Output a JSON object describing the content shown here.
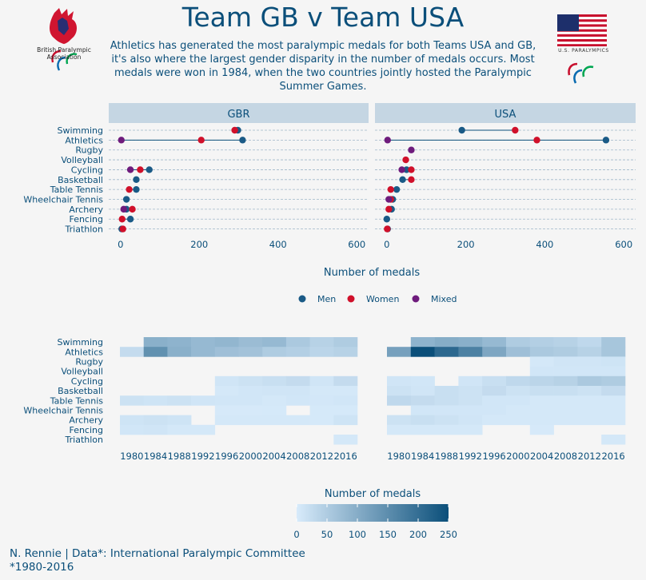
{
  "title": "Team GB v Team USA",
  "subtitle": "Athletics has generated the most paralympic medals for both Teams USA and GB, it's also where the largest gender disparity in the number of medals occurs. Most medals were won in 1984, when the two countries jointly hosted the Paralympic Summer Games.",
  "logos": {
    "left_text": "British Paralympic Association",
    "right_text": "U.S. PARALYMPICS"
  },
  "credit": {
    "line1": "N. Rennie | Data*: International Paralympic Committee",
    "line2": "*1980-2016"
  },
  "colors": {
    "Men": "#1a5a86",
    "Women": "#d0102a",
    "Mixed": "#6e1b7c",
    "panel_strip": "#c5d6e3",
    "heat_low": "#d8ebfb",
    "heat_high": "#0b4f7a"
  },
  "chart_data": [
    {
      "type": "scatter",
      "subtype": "dumbbell",
      "facets": [
        "GBR",
        "USA"
      ],
      "categories": [
        "Swimming",
        "Athletics",
        "Rugby",
        "Volleyball",
        "Cycling",
        "Basketball",
        "Table Tennis",
        "Wheelchair Tennis",
        "Archery",
        "Fencing",
        "Triathlon"
      ],
      "xlabel": "Number of medals",
      "xlim": [
        -30,
        630
      ],
      "xticks": [
        0,
        200,
        400,
        600
      ],
      "legend_position": "bottom",
      "series": [
        {
          "name": "Men",
          "facet": "GBR",
          "values": [
            298,
            310,
            null,
            null,
            73,
            40,
            40,
            15,
            15,
            25,
            3
          ]
        },
        {
          "name": "Women",
          "facet": "GBR",
          "values": [
            290,
            205,
            null,
            null,
            50,
            null,
            22,
            null,
            30,
            4,
            6
          ]
        },
        {
          "name": "Mixed",
          "facet": "GBR",
          "values": [
            null,
            2,
            null,
            null,
            25,
            null,
            null,
            null,
            8,
            null,
            null
          ]
        },
        {
          "name": "Men",
          "facet": "USA",
          "values": [
            190,
            555,
            null,
            null,
            50,
            40,
            25,
            15,
            12,
            0,
            2
          ]
        },
        {
          "name": "Women",
          "facet": "USA",
          "values": [
            325,
            380,
            null,
            48,
            62,
            62,
            10,
            10,
            5,
            null,
            1
          ]
        },
        {
          "name": "Mixed",
          "facet": "USA",
          "values": [
            null,
            2,
            62,
            null,
            38,
            null,
            null,
            5,
            null,
            null,
            null
          ]
        }
      ]
    },
    {
      "type": "heatmap",
      "facets": [
        "GBR",
        "USA"
      ],
      "rows": [
        "Swimming",
        "Athletics",
        "Rugby",
        "Volleyball",
        "Cycling",
        "Basketball",
        "Table Tennis",
        "Wheelchair Tennis",
        "Archery",
        "Fencing",
        "Triathlon"
      ],
      "years": [
        1980,
        1984,
        1988,
        1992,
        1996,
        2000,
        2004,
        2008,
        2012,
        2016
      ],
      "xticks": [
        1980,
        1984,
        1988,
        1992,
        1996,
        2000,
        2004,
        2008,
        2012,
        2016
      ],
      "legend_title": "Number of medals",
      "legend_ticks": [
        0,
        50,
        100,
        150,
        200,
        250
      ],
      "range": [
        0,
        250
      ],
      "values": {
        "GBR": [
          [
            null,
            95,
            90,
            80,
            85,
            75,
            80,
            55,
            40,
            50
          ],
          [
            25,
            145,
            95,
            80,
            70,
            65,
            50,
            45,
            35,
            40
          ],
          [
            null,
            null,
            null,
            null,
            null,
            null,
            null,
            null,
            null,
            null
          ],
          [
            null,
            null,
            null,
            null,
            null,
            null,
            null,
            null,
            null,
            null
          ],
          [
            null,
            null,
            null,
            null,
            10,
            15,
            20,
            25,
            10,
            25
          ],
          [
            null,
            null,
            null,
            null,
            5,
            8,
            10,
            10,
            5,
            5
          ],
          [
            15,
            12,
            15,
            10,
            8,
            8,
            5,
            8,
            6,
            8
          ],
          [
            null,
            null,
            null,
            null,
            3,
            3,
            4,
            null,
            4,
            4
          ],
          [
            12,
            15,
            12,
            null,
            5,
            5,
            5,
            5,
            4,
            12
          ],
          [
            8,
            10,
            5,
            5,
            null,
            null,
            null,
            null,
            null,
            null
          ],
          [
            null,
            null,
            null,
            null,
            null,
            null,
            null,
            null,
            null,
            5
          ]
        ],
        "USA": [
          [
            null,
            90,
            100,
            95,
            80,
            50,
            45,
            40,
            30,
            60
          ],
          [
            120,
            250,
            210,
            170,
            110,
            70,
            55,
            50,
            40,
            60
          ],
          [
            null,
            null,
            null,
            null,
            null,
            null,
            5,
            10,
            10,
            12
          ],
          [
            null,
            null,
            null,
            null,
            null,
            null,
            8,
            8,
            8,
            8
          ],
          [
            10,
            8,
            null,
            10,
            20,
            30,
            35,
            40,
            55,
            50
          ],
          [
            15,
            10,
            20,
            15,
            25,
            15,
            20,
            20,
            15,
            25
          ],
          [
            30,
            25,
            20,
            15,
            8,
            8,
            5,
            5,
            5,
            5
          ],
          [
            null,
            8,
            8,
            8,
            8,
            5,
            5,
            5,
            5,
            5
          ],
          [
            15,
            20,
            15,
            10,
            5,
            5,
            5,
            5,
            5,
            5
          ],
          [
            5,
            5,
            5,
            5,
            null,
            null,
            3,
            null,
            null,
            null
          ],
          [
            null,
            null,
            null,
            null,
            null,
            null,
            null,
            null,
            null,
            5
          ]
        ]
      }
    }
  ]
}
